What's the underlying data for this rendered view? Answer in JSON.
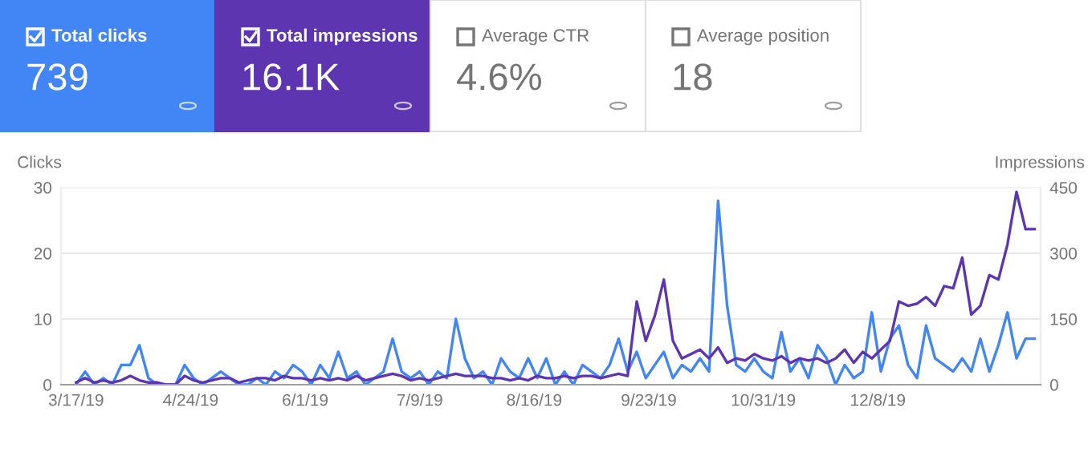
{
  "chart_data": {
    "type": "line",
    "annotations": [
      "Total clicks",
      "739",
      "Total impressions",
      "16.1K",
      "Average CTR",
      "4.6%",
      "Average position",
      "18"
    ],
    "ylabel": "Clicks",
    "y2label": "Impressions",
    "x": [
      "2019-03-17",
      "2019-03-20",
      "2019-03-23",
      "2019-03-26",
      "2019-03-29",
      "2019-04-01",
      "2019-04-04",
      "2019-04-07",
      "2019-04-10",
      "2019-04-13",
      "2019-04-16",
      "2019-04-19",
      "2019-04-22",
      "2019-04-25",
      "2019-04-28",
      "2019-05-01",
      "2019-05-04",
      "2019-05-07",
      "2019-05-10",
      "2019-05-13",
      "2019-05-16",
      "2019-05-19",
      "2019-05-22",
      "2019-05-25",
      "2019-05-28",
      "2019-05-31",
      "2019-06-03",
      "2019-06-06",
      "2019-06-09",
      "2019-06-12",
      "2019-06-15",
      "2019-06-18",
      "2019-06-21",
      "2019-06-24",
      "2019-06-27",
      "2019-06-30",
      "2019-07-03",
      "2019-07-06",
      "2019-07-09",
      "2019-07-12",
      "2019-07-15",
      "2019-07-18",
      "2019-07-21",
      "2019-07-24",
      "2019-07-27",
      "2019-07-30",
      "2019-08-02",
      "2019-08-05",
      "2019-08-08",
      "2019-08-11",
      "2019-08-14",
      "2019-08-17",
      "2019-08-20",
      "2019-08-23",
      "2019-08-26",
      "2019-08-29",
      "2019-09-01",
      "2019-09-04",
      "2019-09-07",
      "2019-09-10",
      "2019-09-13",
      "2019-09-16",
      "2019-09-19",
      "2019-09-22",
      "2019-09-25",
      "2019-09-28",
      "2019-10-01",
      "2019-10-04",
      "2019-10-07",
      "2019-10-10",
      "2019-10-13",
      "2019-10-16",
      "2019-10-19",
      "2019-10-22",
      "2019-10-25",
      "2019-10-28",
      "2019-10-31",
      "2019-11-03",
      "2019-11-06",
      "2019-11-09",
      "2019-11-12",
      "2019-11-15",
      "2019-11-18",
      "2019-11-21",
      "2019-11-24",
      "2019-11-27",
      "2019-11-30",
      "2019-12-03",
      "2019-12-06",
      "2019-12-09",
      "2019-12-12",
      "2019-12-15",
      "2019-12-18",
      "2019-12-21",
      "2019-12-24",
      "2019-12-27",
      "2019-12-30",
      "2020-01-02",
      "2020-01-05",
      "2020-01-08",
      "2020-01-11",
      "2020-01-14",
      "2020-01-17",
      "2020-01-20",
      "2020-01-23",
      "2020-01-26",
      "2020-01-29"
    ],
    "series": [
      {
        "color": "#4285f4",
        "values": [
          0,
          2,
          0,
          1,
          0,
          3,
          3,
          6,
          1,
          0,
          0,
          0,
          3,
          1,
          0,
          1,
          2,
          1,
          0,
          0,
          1,
          0,
          2,
          1,
          3,
          2,
          0,
          3,
          1,
          5,
          1,
          2,
          0,
          1,
          2,
          7,
          2,
          1,
          2,
          0,
          2,
          1,
          10,
          4,
          1,
          2,
          0,
          4,
          2,
          1,
          4,
          1,
          4,
          0,
          2,
          0,
          3,
          2,
          1,
          3,
          7,
          2,
          5,
          1,
          3,
          5,
          1,
          3,
          2,
          4,
          2,
          28,
          12,
          3,
          2,
          4,
          2,
          1,
          8,
          2,
          4,
          1,
          6,
          4,
          0,
          3,
          1,
          2,
          11,
          2,
          7,
          9,
          3,
          1,
          9,
          4,
          3,
          2,
          4,
          2,
          7,
          2,
          6,
          11,
          4,
          7,
          7
        ]
      },
      {
        "color": "#5e35b1",
        "axis": "y2",
        "values": [
          5,
          15,
          5,
          10,
          5,
          10,
          20,
          10,
          5,
          5,
          0,
          0,
          20,
          10,
          5,
          10,
          15,
          15,
          5,
          10,
          15,
          15,
          10,
          20,
          15,
          15,
          10,
          15,
          10,
          15,
          10,
          20,
          10,
          15,
          20,
          25,
          20,
          10,
          15,
          10,
          15,
          20,
          25,
          20,
          20,
          20,
          15,
          15,
          10,
          15,
          10,
          20,
          15,
          15,
          20,
          15,
          20,
          20,
          15,
          20,
          25,
          20,
          190,
          100,
          157,
          240,
          100,
          60,
          70,
          80,
          60,
          85,
          50,
          60,
          55,
          70,
          60,
          55,
          65,
          50,
          60,
          55,
          60,
          50,
          60,
          80,
          50,
          75,
          60,
          80,
          100,
          190,
          180,
          185,
          200,
          180,
          225,
          220,
          290,
          160,
          180,
          250,
          240,
          320,
          440,
          355,
          355
        ]
      }
    ],
    "xlim": [
      "2019-03-12",
      "2020-01-31"
    ],
    "xticks": [
      {
        "value": "2019-03-17",
        "label": "3/17/19"
      },
      {
        "value": "2019-04-24",
        "label": "4/24/19"
      },
      {
        "value": "2019-06-01",
        "label": "6/1/19"
      },
      {
        "value": "2019-07-09",
        "label": "7/9/19"
      },
      {
        "value": "2019-08-16",
        "label": "8/16/19"
      },
      {
        "value": "2019-09-23",
        "label": "9/23/19"
      },
      {
        "value": "2019-10-31",
        "label": "10/31/19"
      },
      {
        "value": "2019-12-08",
        "label": "12/8/19"
      }
    ],
    "ylim": [
      0,
      30
    ],
    "yticks": [
      0,
      10,
      20,
      30
    ],
    "y2lim": [
      0,
      450
    ],
    "y2ticks": [
      0,
      150,
      300,
      450
    ],
    "grid": "y",
    "legend": false
  }
}
